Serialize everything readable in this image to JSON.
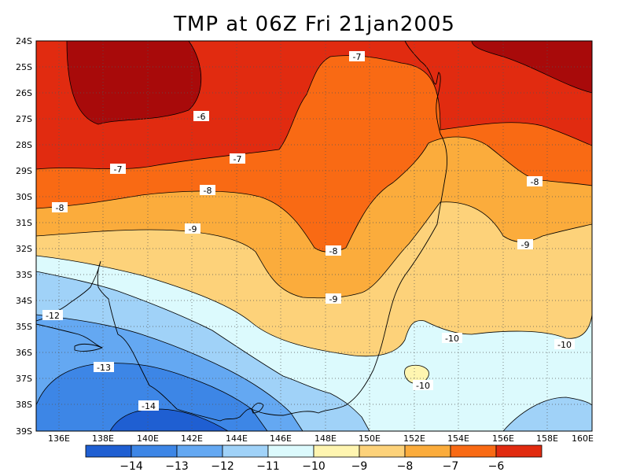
{
  "title": "TMP at 06Z Fri 21jan2005",
  "colors": {
    "bin_colors": [
      "#1f5fd2",
      "#3d86e6",
      "#64a8f2",
      "#a0d2f8",
      "#dcfafd",
      "#fff5b0",
      "#fdd27a",
      "#fbac3c",
      "#f96a14",
      "#e12b10",
      "#a80a0a"
    ]
  },
  "lat_labels": [
    "24S",
    "25S",
    "26S",
    "27S",
    "28S",
    "29S",
    "30S",
    "31S",
    "32S",
    "33S",
    "34S",
    "35S",
    "36S",
    "37S",
    "38S",
    "39S"
  ],
  "lon_labels": [
    "136E",
    "138E",
    "140E",
    "142E",
    "144E",
    "146E",
    "148E",
    "150E",
    "152E",
    "154E",
    "156E",
    "158E",
    "160E"
  ],
  "colorbar_labels": [
    "−14",
    "−13",
    "−12",
    "−11",
    "−10",
    "−9",
    "−8",
    "−7",
    "−6"
  ],
  "contour_labels": [
    {
      "text": "-7"
    },
    {
      "text": "-6"
    },
    {
      "text": "-7"
    },
    {
      "text": "-7"
    },
    {
      "text": "-8"
    },
    {
      "text": "-8"
    },
    {
      "text": "-8"
    },
    {
      "text": "-9"
    },
    {
      "text": "-8"
    },
    {
      "text": "-9"
    },
    {
      "text": "-9"
    },
    {
      "text": "-12"
    },
    {
      "text": "-10"
    },
    {
      "text": "-10"
    },
    {
      "text": "-13"
    },
    {
      "text": "-10"
    },
    {
      "text": "-14"
    }
  ]
}
